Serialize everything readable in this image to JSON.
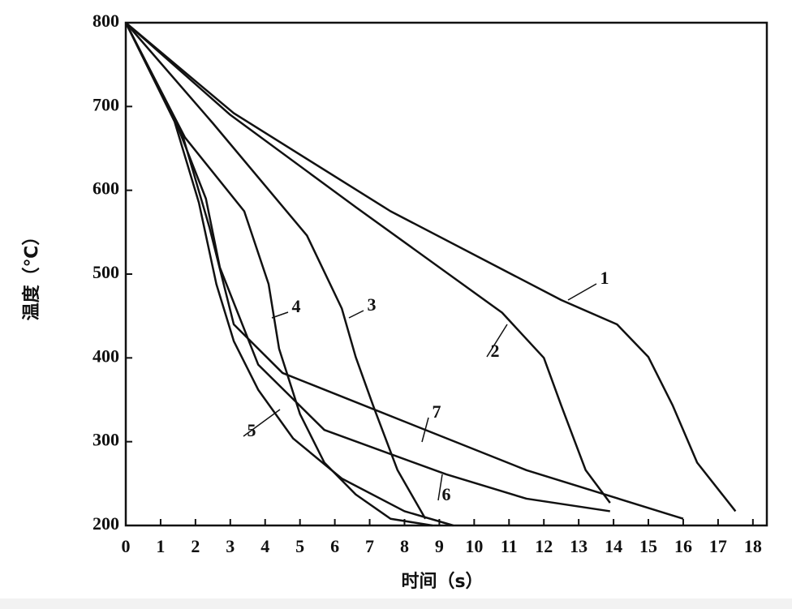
{
  "chart_data": {
    "type": "line",
    "xlabel": "时间（s）",
    "ylabel": "温度（℃）",
    "xlim": [
      0,
      18.4
    ],
    "ylim": [
      200,
      800
    ],
    "xticks": [
      0,
      1,
      2,
      3,
      4,
      5,
      6,
      7,
      8,
      9,
      10,
      11,
      12,
      13,
      14,
      15,
      16,
      17,
      18
    ],
    "yticks": [
      200,
      300,
      400,
      500,
      600,
      700,
      800
    ],
    "series": [
      {
        "name": "1",
        "color": "#111111",
        "x": [
          0,
          3.1,
          7.6,
          12.5,
          14.1,
          15,
          15.7,
          16.4,
          17.5
        ],
        "values": [
          800,
          692,
          575,
          469,
          440,
          401,
          343,
          275,
          217
        ]
      },
      {
        "name": "2",
        "color": "#111111",
        "x": [
          0,
          3,
          6.6,
          10.8,
          12,
          12.5,
          13.2,
          13.9
        ],
        "values": [
          800,
          690,
          580,
          454,
          400,
          343,
          266,
          227
        ]
      },
      {
        "name": "3",
        "color": "#111111",
        "x": [
          0,
          2.5,
          5.2,
          6.2,
          6.6,
          7.1,
          7.8,
          8.6
        ],
        "values": [
          800,
          680,
          546,
          459,
          401,
          343,
          266,
          208
        ]
      },
      {
        "name": "4",
        "color": "#111111",
        "x": [
          0,
          1.7,
          3.4,
          4.1,
          4.4,
          5,
          5.7,
          6.6,
          7.6,
          8.8
        ],
        "values": [
          800,
          663,
          575,
          488,
          411,
          333,
          275,
          237,
          208,
          200
        ]
      },
      {
        "name": "5",
        "color": "#111111",
        "x": [
          0,
          1.4,
          2.1,
          2.6,
          3.1,
          3.8,
          4.8,
          6.2,
          8,
          9.4
        ],
        "values": [
          800,
          682,
          585,
          488,
          420,
          362,
          304,
          256,
          217,
          200
        ]
      },
      {
        "name": "6",
        "color": "#111111",
        "x": [
          0,
          1.5,
          2.3,
          2.7,
          3.8,
          5.7,
          9.2,
          11.5,
          13.9
        ],
        "values": [
          800,
          675,
          590,
          508,
          392,
          314,
          261,
          232,
          217
        ]
      },
      {
        "name": "7",
        "color": "#111111",
        "x": [
          0,
          1.6,
          2.4,
          3.1,
          4.5,
          8,
          11.5,
          16
        ],
        "values": [
          800,
          670,
          556,
          440,
          382,
          324,
          266,
          208
        ]
      }
    ]
  }
}
